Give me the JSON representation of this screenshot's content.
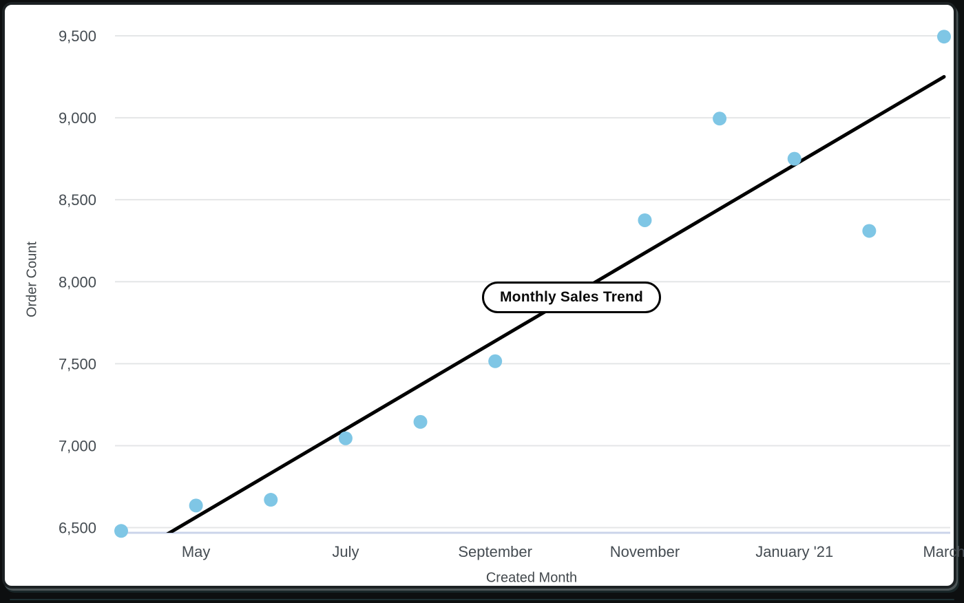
{
  "frame": {
    "background": "#0d0f10",
    "card_background": "#ffffff",
    "border_color": "#1c2123"
  },
  "chart_data": {
    "type": "scatter",
    "title": "Monthly Sales Trend",
    "xlabel": "Created Month",
    "ylabel": "Order Count",
    "n_months": 12,
    "grid": true,
    "legend": "none",
    "ylim": [
      6475,
      9542
    ],
    "x_tick_labels": [
      {
        "index": 1,
        "label": "May"
      },
      {
        "index": 3,
        "label": "July"
      },
      {
        "index": 5,
        "label": "September"
      },
      {
        "index": 7,
        "label": "November"
      },
      {
        "index": 9,
        "label": "January '21"
      },
      {
        "index": 11,
        "label": "March"
      }
    ],
    "y_tick_labels": [
      {
        "value": 6500,
        "label": "6,500"
      },
      {
        "value": 7000,
        "label": "7,000"
      },
      {
        "value": 7500,
        "label": "7,500"
      },
      {
        "value": 8000,
        "label": "8,000"
      },
      {
        "value": 8500,
        "label": "8,500"
      },
      {
        "value": 9000,
        "label": "9,000"
      },
      {
        "value": 9500,
        "label": "9,500"
      }
    ],
    "points": [
      {
        "month_index": 0,
        "value": 6480
      },
      {
        "month_index": 1,
        "value": 6635
      },
      {
        "month_index": 2,
        "value": 6670
      },
      {
        "month_index": 3,
        "value": 7045
      },
      {
        "month_index": 4,
        "value": 7145
      },
      {
        "month_index": 5,
        "value": 7515
      },
      {
        "month_index": 7,
        "value": 8375
      },
      {
        "month_index": 8,
        "value": 8995
      },
      {
        "month_index": 9,
        "value": 8750
      },
      {
        "month_index": 10,
        "value": 8310
      },
      {
        "month_index": 11,
        "value": 9495
      }
    ],
    "trendline": {
      "value_at_first_month": 6295,
      "value_at_last_month": 9250
    },
    "colors": {
      "point": "#7FC6E5",
      "trendline": "#000000",
      "gridline": "#E4E6E7",
      "axis_line": "#CBD4EA",
      "tick_label": "#454C52",
      "axis_title": "#42484C",
      "title_pill_bg": "#FFFFFF",
      "title_pill_border": "#000000",
      "title_pill_text": "#0A0A0A"
    }
  }
}
